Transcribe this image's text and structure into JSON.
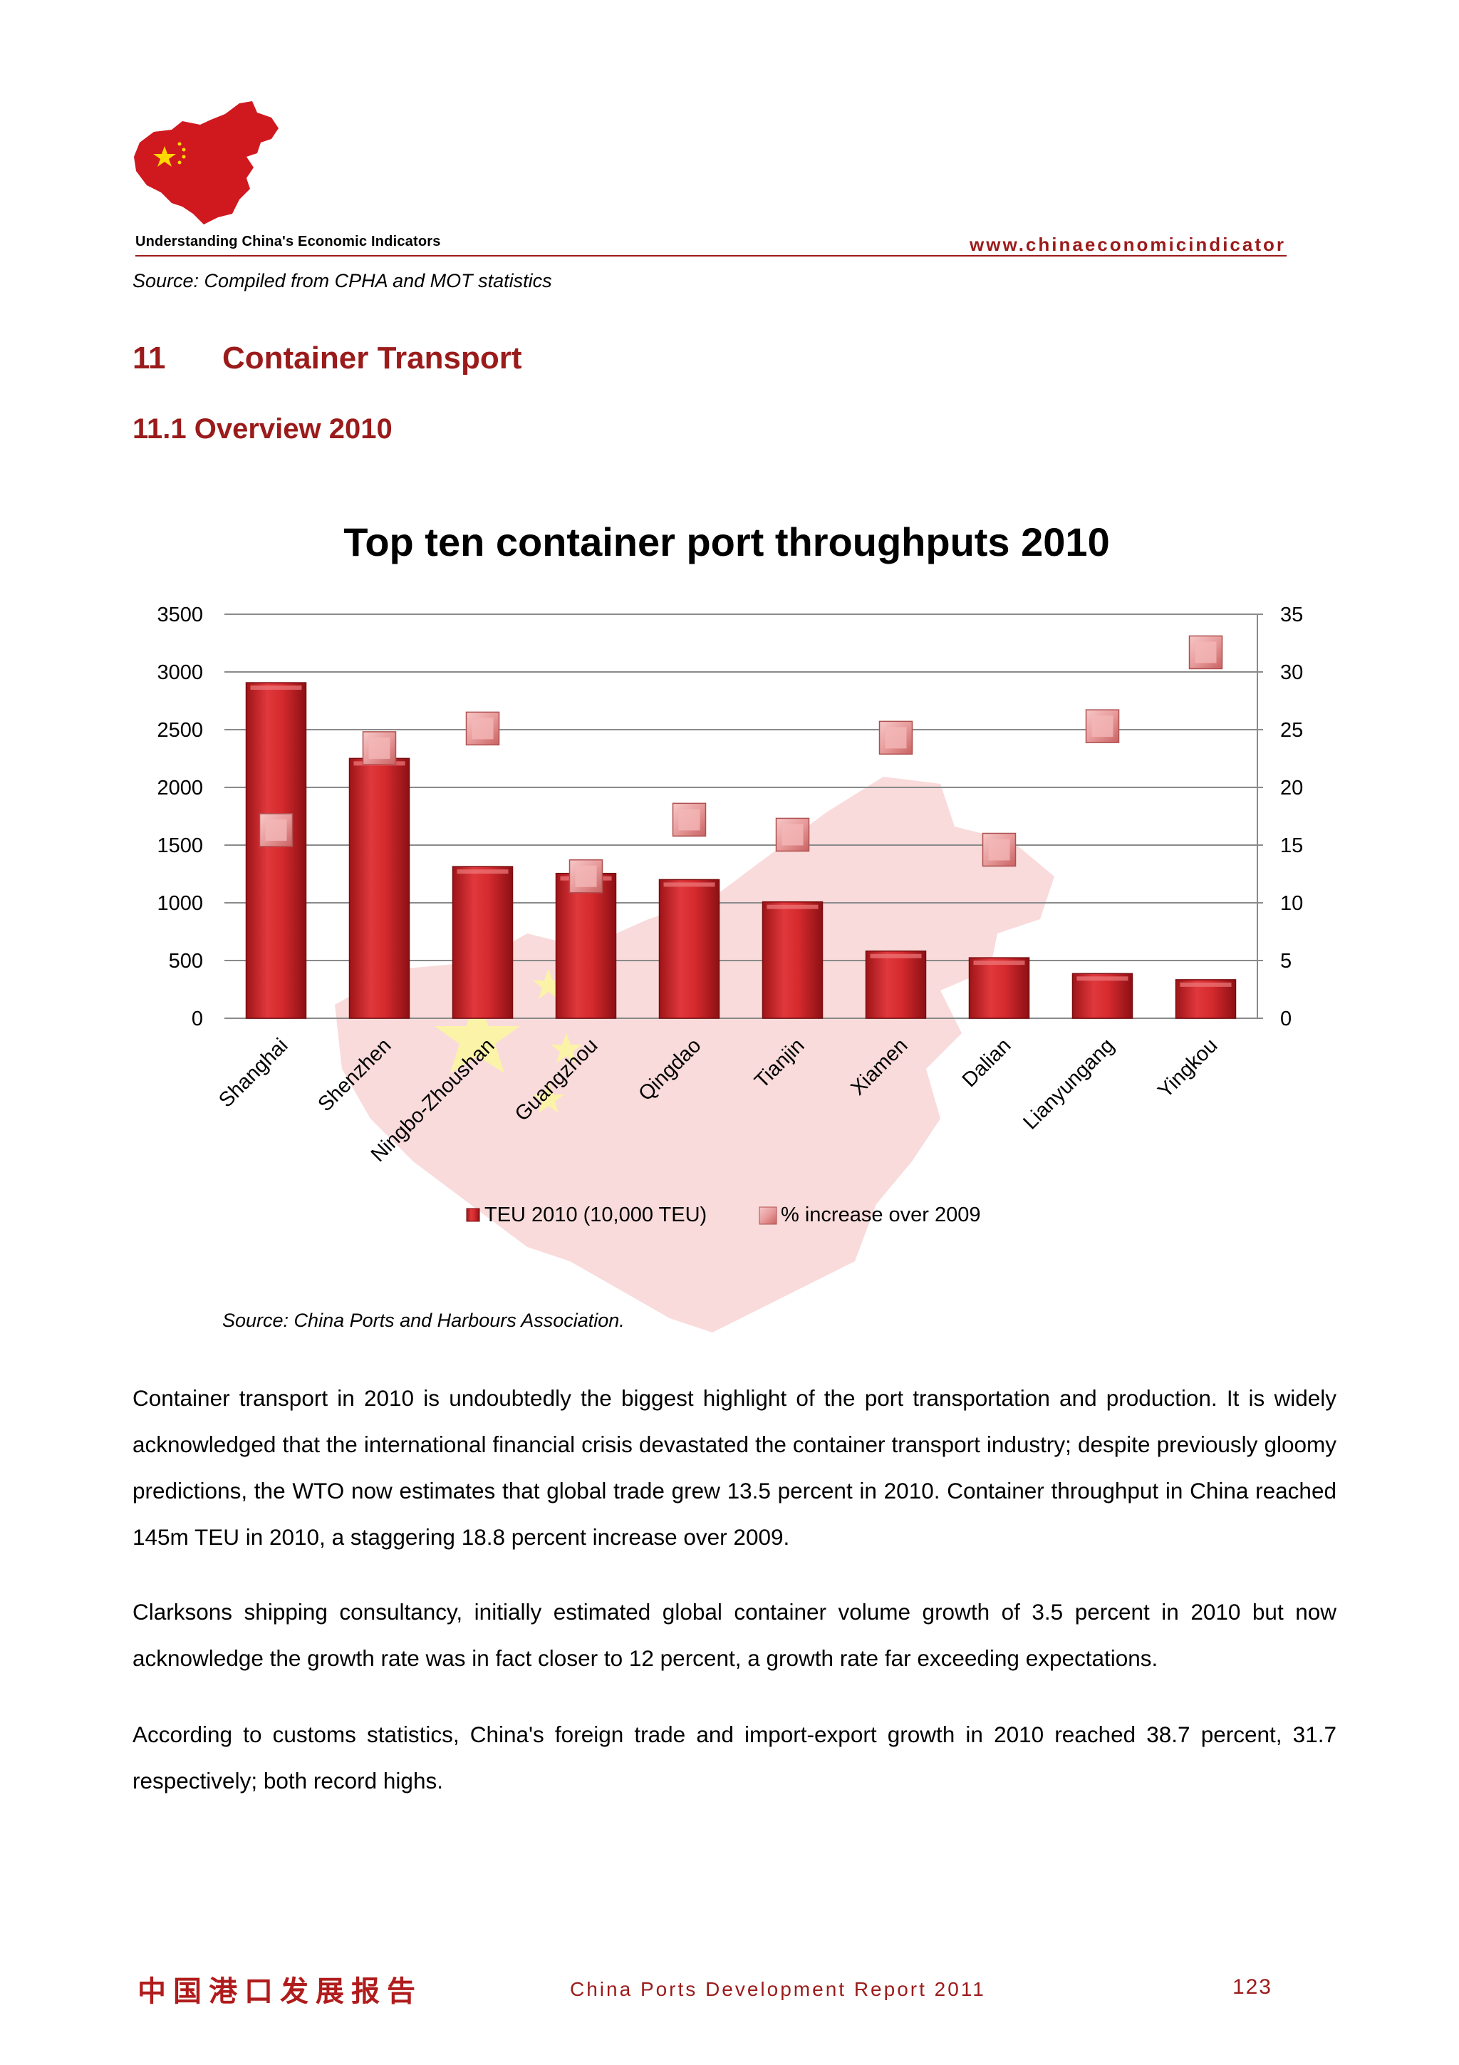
{
  "header": {
    "brand": "Understanding China's Economic Indicators",
    "url": "www.chinaeconomicindicator",
    "logo_icon": "china-map-flag-icon",
    "accent": "#9b1b1b"
  },
  "source_top": "Source: Compiled from CPHA and MOT statistics",
  "section": {
    "number": "11",
    "title": "Container Transport"
  },
  "subsection": "11.1 Overview 2010",
  "chart_data": {
    "type": "bar",
    "title": "Top ten container port throughputs 2010",
    "categories": [
      "Shanghai",
      "Shenzhen",
      "Ningbo-Zhoushan",
      "Guangzhou",
      "Qingdao",
      "Tianjin",
      "Xiamen",
      "Dalian",
      "Lianyungang",
      "Yingkou"
    ],
    "series": [
      {
        "name": "TEU 2010 (10,000 TEU)",
        "axis": "left",
        "kind": "bar",
        "color": "#c8282a",
        "values": [
          2907,
          2251,
          1314,
          1255,
          1201,
          1008,
          582,
          524,
          387,
          334
        ]
      },
      {
        "name": "% increase over 2009",
        "axis": "right",
        "kind": "marker",
        "color": "#e8a1a1",
        "values": [
          16.3,
          23.4,
          25.1,
          12.3,
          17.2,
          15.9,
          24.3,
          14.6,
          25.3,
          31.7
        ]
      }
    ],
    "ylim_left": [
      0,
      3500
    ],
    "yticks_left": [
      "0",
      "500",
      "1000",
      "1500",
      "2000",
      "2500",
      "3000",
      "3500"
    ],
    "ylim_right": [
      0,
      35
    ],
    "yticks_right": [
      "0",
      "5",
      "10",
      "15",
      "20",
      "25",
      "30",
      "35"
    ],
    "grid": true,
    "legend": "bottom",
    "source": "Source: China Ports and Harbours Association."
  },
  "paragraphs": [
    "Container transport in 2010 is undoubtedly the biggest highlight of the port transportation and production. It is widely acknowledged that the international financial crisis devastated the container transport industry; despite previously gloomy predictions, the WTO now estimates that global trade grew 13.5 percent in 2010. Container throughput in China reached 145m TEU in 2010, a staggering 18.8 percent increase over 2009.",
    "Clarksons shipping consultancy, initially estimated global container volume growth of 3.5 percent in 2010 but now acknowledge the growth rate was in fact closer to 12 percent, a growth rate far exceeding expectations.",
    "According to customs statistics, China's foreign trade and import-export growth in 2010 reached 38.7 percent, 31.7 respectively; both record highs."
  ],
  "footer": {
    "chinese_title": "中国港口发展报告",
    "report_title": "China Ports Development Report 2011",
    "page_number": "123"
  }
}
